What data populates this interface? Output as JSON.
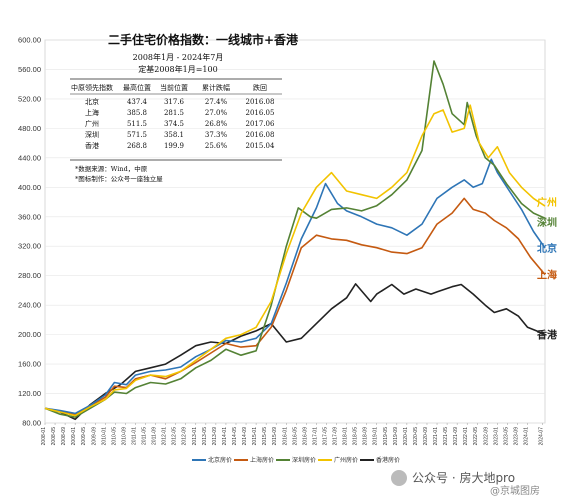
{
  "chart_data": {
    "type": "line",
    "title": "二手住宅价格指数：一线城市+香港",
    "subtitle1": "2008年1月 - 2024年7月",
    "subtitle2": "定基2008年1月=100",
    "ylim": [
      80,
      600
    ],
    "yticks": [
      "80.00",
      "120.00",
      "160.00",
      "200.00",
      "240.00",
      "280.00",
      "320.00",
      "360.00",
      "400.00",
      "440.00",
      "480.00",
      "520.00",
      "560.00",
      "600.00"
    ],
    "x_range": [
      "2008-01",
      "2024-07"
    ],
    "xticks": [
      "2008-01",
      "2008-05",
      "2008-09",
      "2009-01",
      "2009-05",
      "2009-09",
      "2010-01",
      "2010-05",
      "2010-09",
      "2011-01",
      "2011-05",
      "2011-09",
      "2012-01",
      "2012-05",
      "2012-09",
      "2013-01",
      "2013-05",
      "2013-09",
      "2014-01",
      "2014-05",
      "2014-09",
      "2015-01",
      "2015-05",
      "2015-09",
      "2016-01",
      "2016-05",
      "2016-09",
      "2017-01",
      "2017-05",
      "2017-09",
      "2018-01",
      "2018-05",
      "2018-09",
      "2019-01",
      "2019-05",
      "2019-09",
      "2020-01",
      "2020-05",
      "2020-09",
      "2021-01",
      "2021-05",
      "2021-09",
      "2022-01",
      "2022-05",
      "2022-09",
      "2023-01",
      "2023-05",
      "2023-09",
      "2024-01",
      "2024-07"
    ],
    "series": [
      {
        "name": "北京房价",
        "end_label": "北京",
        "color": "#2e75b6",
        "points": [
          [
            2008.0,
            100
          ],
          [
            2008.5,
            97
          ],
          [
            2009.0,
            93
          ],
          [
            2009.5,
            104
          ],
          [
            2010.0,
            118
          ],
          [
            2010.3,
            135
          ],
          [
            2010.7,
            132
          ],
          [
            2011.0,
            145
          ],
          [
            2011.5,
            150
          ],
          [
            2012.0,
            152
          ],
          [
            2012.5,
            156
          ],
          [
            2013.0,
            170
          ],
          [
            2013.5,
            180
          ],
          [
            2014.0,
            192
          ],
          [
            2014.5,
            190
          ],
          [
            2015.0,
            195
          ],
          [
            2015.5,
            215
          ],
          [
            2016.0,
            270
          ],
          [
            2016.5,
            330
          ],
          [
            2017.0,
            372
          ],
          [
            2017.3,
            405
          ],
          [
            2017.7,
            378
          ],
          [
            2018.0,
            368
          ],
          [
            2018.5,
            360
          ],
          [
            2019.0,
            350
          ],
          [
            2019.5,
            345
          ],
          [
            2020.0,
            335
          ],
          [
            2020.5,
            350
          ],
          [
            2021.0,
            385
          ],
          [
            2021.5,
            400
          ],
          [
            2021.9,
            410
          ],
          [
            2022.2,
            400
          ],
          [
            2022.5,
            405
          ],
          [
            2022.8,
            438
          ],
          [
            2023.0,
            420
          ],
          [
            2023.4,
            395
          ],
          [
            2023.8,
            370
          ],
          [
            2024.2,
            340
          ],
          [
            2024.58,
            317.6
          ]
        ]
      },
      {
        "name": "上海房价",
        "end_label": "上海",
        "color": "#c55a11",
        "points": [
          [
            2008.0,
            100
          ],
          [
            2008.5,
            96
          ],
          [
            2009.0,
            92
          ],
          [
            2009.5,
            103
          ],
          [
            2010.0,
            115
          ],
          [
            2010.3,
            130
          ],
          [
            2010.7,
            128
          ],
          [
            2011.0,
            140
          ],
          [
            2011.5,
            145
          ],
          [
            2012.0,
            140
          ],
          [
            2012.5,
            150
          ],
          [
            2013.0,
            162
          ],
          [
            2013.5,
            175
          ],
          [
            2014.0,
            188
          ],
          [
            2014.5,
            183
          ],
          [
            2015.0,
            185
          ],
          [
            2015.5,
            210
          ],
          [
            2016.0,
            260
          ],
          [
            2016.5,
            318
          ],
          [
            2017.0,
            335
          ],
          [
            2017.5,
            330
          ],
          [
            2018.0,
            328
          ],
          [
            2018.5,
            322
          ],
          [
            2019.0,
            318
          ],
          [
            2019.5,
            312
          ],
          [
            2020.0,
            310
          ],
          [
            2020.5,
            318
          ],
          [
            2021.0,
            350
          ],
          [
            2021.5,
            365
          ],
          [
            2021.9,
            385
          ],
          [
            2022.2,
            370
          ],
          [
            2022.6,
            365
          ],
          [
            2022.9,
            355
          ],
          [
            2023.3,
            345
          ],
          [
            2023.7,
            330
          ],
          [
            2024.1,
            305
          ],
          [
            2024.58,
            281.5
          ]
        ]
      },
      {
        "name": "深圳房价",
        "end_label": "深圳",
        "color": "#548235",
        "points": [
          [
            2008.0,
            100
          ],
          [
            2008.5,
            92
          ],
          [
            2009.0,
            88
          ],
          [
            2009.5,
            100
          ],
          [
            2010.0,
            112
          ],
          [
            2010.3,
            122
          ],
          [
            2010.7,
            120
          ],
          [
            2011.0,
            128
          ],
          [
            2011.5,
            135
          ],
          [
            2012.0,
            133
          ],
          [
            2012.5,
            140
          ],
          [
            2013.0,
            155
          ],
          [
            2013.5,
            165
          ],
          [
            2014.0,
            180
          ],
          [
            2014.5,
            172
          ],
          [
            2015.0,
            178
          ],
          [
            2015.5,
            240
          ],
          [
            2016.0,
            320
          ],
          [
            2016.4,
            372
          ],
          [
            2016.8,
            360
          ],
          [
            2017.0,
            358
          ],
          [
            2017.5,
            370
          ],
          [
            2018.0,
            372
          ],
          [
            2018.5,
            368
          ],
          [
            2019.0,
            375
          ],
          [
            2019.5,
            390
          ],
          [
            2020.0,
            410
          ],
          [
            2020.5,
            450
          ],
          [
            2020.9,
            571.5
          ],
          [
            2021.2,
            540
          ],
          [
            2021.5,
            500
          ],
          [
            2021.9,
            485
          ],
          [
            2022.0,
            515
          ],
          [
            2022.3,
            470
          ],
          [
            2022.6,
            440
          ],
          [
            2022.9,
            430
          ],
          [
            2023.3,
            405
          ],
          [
            2023.8,
            378
          ],
          [
            2024.2,
            365
          ],
          [
            2024.58,
            358.1
          ]
        ]
      },
      {
        "name": "广州房价",
        "end_label": "广州",
        "color": "#f2c300",
        "points": [
          [
            2008.0,
            100
          ],
          [
            2008.5,
            95
          ],
          [
            2009.0,
            90
          ],
          [
            2009.5,
            102
          ],
          [
            2010.0,
            112
          ],
          [
            2010.3,
            125
          ],
          [
            2010.7,
            127
          ],
          [
            2011.0,
            138
          ],
          [
            2011.5,
            145
          ],
          [
            2012.0,
            143
          ],
          [
            2012.5,
            150
          ],
          [
            2013.0,
            165
          ],
          [
            2013.5,
            180
          ],
          [
            2014.0,
            195
          ],
          [
            2014.5,
            200
          ],
          [
            2015.0,
            210
          ],
          [
            2015.5,
            245
          ],
          [
            2016.0,
            310
          ],
          [
            2016.5,
            365
          ],
          [
            2017.0,
            400
          ],
          [
            2017.5,
            420
          ],
          [
            2018.0,
            395
          ],
          [
            2018.5,
            390
          ],
          [
            2019.0,
            385
          ],
          [
            2019.5,
            400
          ],
          [
            2020.0,
            420
          ],
          [
            2020.5,
            470
          ],
          [
            2020.9,
            500
          ],
          [
            2021.2,
            505
          ],
          [
            2021.5,
            475
          ],
          [
            2021.9,
            480
          ],
          [
            2022.1,
            511.5
          ],
          [
            2022.4,
            460
          ],
          [
            2022.7,
            440
          ],
          [
            2023.0,
            455
          ],
          [
            2023.4,
            420
          ],
          [
            2023.8,
            400
          ],
          [
            2024.2,
            385
          ],
          [
            2024.58,
            374.5
          ]
        ]
      },
      {
        "name": "香港房价",
        "end_label": "香港",
        "color": "#222222",
        "points": [
          [
            2008.0,
            100
          ],
          [
            2008.5,
            95
          ],
          [
            2009.0,
            85
          ],
          [
            2009.5,
            105
          ],
          [
            2010.0,
            120
          ],
          [
            2010.5,
            132
          ],
          [
            2011.0,
            150
          ],
          [
            2011.5,
            155
          ],
          [
            2012.0,
            160
          ],
          [
            2012.5,
            172
          ],
          [
            2013.0,
            185
          ],
          [
            2013.5,
            190
          ],
          [
            2014.0,
            188
          ],
          [
            2014.5,
            198
          ],
          [
            2015.0,
            205
          ],
          [
            2015.5,
            215
          ],
          [
            2016.0,
            190
          ],
          [
            2016.5,
            195
          ],
          [
            2017.0,
            215
          ],
          [
            2017.5,
            235
          ],
          [
            2018.0,
            250
          ],
          [
            2018.3,
            268.8
          ],
          [
            2018.8,
            245
          ],
          [
            2019.0,
            255
          ],
          [
            2019.5,
            268
          ],
          [
            2019.9,
            255
          ],
          [
            2020.3,
            262
          ],
          [
            2020.8,
            255
          ],
          [
            2021.0,
            258
          ],
          [
            2021.5,
            265
          ],
          [
            2021.8,
            268
          ],
          [
            2022.2,
            255
          ],
          [
            2022.6,
            240
          ],
          [
            2022.9,
            230
          ],
          [
            2023.3,
            235
          ],
          [
            2023.7,
            225
          ],
          [
            2024.0,
            210
          ],
          [
            2024.3,
            205
          ],
          [
            2024.58,
            199.9
          ]
        ]
      }
    ],
    "legend": [
      "北京房价",
      "上海房价",
      "深圳房价",
      "广州房价",
      "香港房价"
    ]
  },
  "info_table": {
    "headers": [
      "中原领先指数",
      "最高位置",
      "当前位置",
      "累计跌幅",
      "跌回"
    ],
    "rows": [
      [
        "北京",
        "437.4",
        "317.6",
        "27.4%",
        "2016.08"
      ],
      [
        "上海",
        "385.8",
        "281.5",
        "27.0%",
        "2016.05"
      ],
      [
        "广州",
        "511.5",
        "374.5",
        "26.8%",
        "2017.06"
      ],
      [
        "深圳",
        "571.5",
        "358.1",
        "37.3%",
        "2016.08"
      ],
      [
        "香港",
        "268.8",
        "199.9",
        "25.6%",
        "2015.04"
      ]
    ],
    "notes": [
      "*数据来源：Wind，中原",
      "*图标制作：公众号一座独立屋"
    ]
  },
  "watermark": {
    "text1": "公众号 · 房大地pro",
    "text2": "@京城图房"
  }
}
